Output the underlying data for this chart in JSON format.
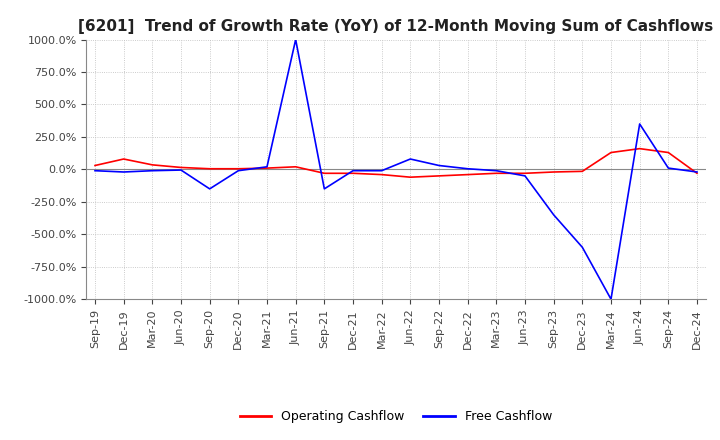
{
  "title": "[6201]  Trend of Growth Rate (YoY) of 12-Month Moving Sum of Cashflows",
  "ylim": [
    -1000,
    1000
  ],
  "yticks": [
    -1000,
    -750,
    -500,
    -250,
    0,
    250,
    500,
    750,
    1000
  ],
  "ytick_labels": [
    "-1000.0%",
    "-750.0%",
    "-500.0%",
    "-250.0%",
    "0.0%",
    "250.0%",
    "500.0%",
    "750.0%",
    "1000.0%"
  ],
  "legend_labels": [
    "Operating Cashflow",
    "Free Cashflow"
  ],
  "legend_colors": [
    "red",
    "blue"
  ],
  "x_labels": [
    "Sep-19",
    "Dec-19",
    "Mar-20",
    "Jun-20",
    "Sep-20",
    "Dec-20",
    "Mar-21",
    "Jun-21",
    "Sep-21",
    "Dec-21",
    "Mar-22",
    "Jun-22",
    "Sep-22",
    "Dec-22",
    "Mar-23",
    "Jun-23",
    "Sep-23",
    "Dec-23",
    "Mar-24",
    "Jun-24",
    "Sep-24",
    "Dec-24"
  ],
  "operating_cashflow": [
    30,
    80,
    35,
    15,
    5,
    5,
    10,
    20,
    -30,
    -30,
    -40,
    -60,
    -50,
    -40,
    -30,
    -30,
    -20,
    -15,
    130,
    160,
    130,
    -30
  ],
  "free_cashflow": [
    -10,
    -20,
    -10,
    -5,
    -150,
    -10,
    20,
    1000,
    -150,
    -10,
    -10,
    80,
    30,
    5,
    -10,
    -50,
    -350,
    -600,
    -1000,
    350,
    10,
    -20
  ],
  "background_color": "#ffffff",
  "grid_color": "#bbbbbb",
  "title_fontsize": 11,
  "tick_fontsize": 8
}
